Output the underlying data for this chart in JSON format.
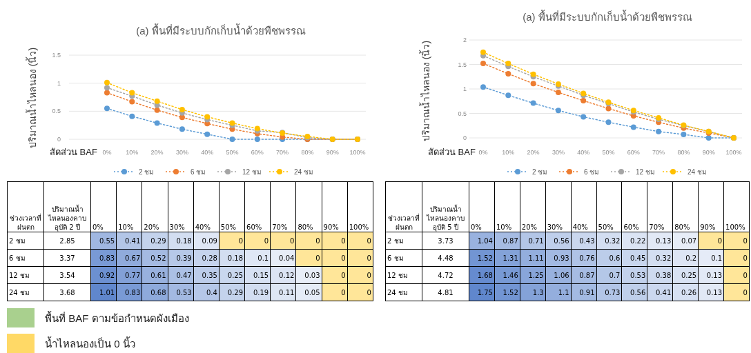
{
  "chart_data": [
    {
      "type": "line",
      "title": "(a) พื้นที่มีระบบกักเก็บน้ำด้วยพืชพรรณ",
      "xlabel": "สัดส่วน BAF",
      "ylabel": "ปริมาณน้ำไหลนอง (นิ้ว)",
      "categories": [
        "0%",
        "10%",
        "20%",
        "30%",
        "40%",
        "50%",
        "60%",
        "70%",
        "80%",
        "90%",
        "100%"
      ],
      "ylim": [
        0,
        1.5
      ],
      "yticks": [
        0,
        0.5,
        1,
        1.5
      ],
      "grid": "y",
      "legend": "bottom",
      "marker": "circle",
      "line_style": "dotted",
      "data_labels": true,
      "series": [
        {
          "name": "2 ชม",
          "color": "#5b9bd5",
          "values": [
            0.55,
            0.41,
            0.29,
            0.18,
            0.09,
            0,
            0,
            0,
            0,
            0,
            0
          ]
        },
        {
          "name": "6 ชม",
          "color": "#ed7d31",
          "values": [
            0.83,
            0.67,
            0.52,
            0.39,
            0.28,
            0.18,
            0.1,
            0.04,
            0,
            0,
            0
          ]
        },
        {
          "name": "12 ชม",
          "color": "#a5a5a5",
          "values": [
            0.92,
            0.77,
            0.61,
            0.47,
            0.35,
            0.25,
            0.15,
            0.12,
            0.03,
            0,
            0
          ]
        },
        {
          "name": "24 ชม",
          "color": "#ffc000",
          "values": [
            1.01,
            0.83,
            0.68,
            0.53,
            0.4,
            0.29,
            0.19,
            0.11,
            0.05,
            0,
            0
          ]
        }
      ],
      "annotations": [
        "ช่วงเวลาที่ฝนตก",
        "ปริมาณน้ำไหลนองคาบอุบัติ 2 ปี",
        "2.85",
        "3.37",
        "3.54",
        "3.68",
        "น้ำไหลนองเป็น 0 นิ้ว",
        "พื้นที่ BAF ตามข้อกำหนดผังเมือง"
      ]
    },
    {
      "type": "line",
      "title": "(a) พื้นที่มีระบบกักเก็บน้ำด้วยพืชพรรณ",
      "xlabel": "สัดส่วน BAF",
      "ylabel": "ปริมาณน้ำไหลนอง (นิ้ว)",
      "categories": [
        "0%",
        "10%",
        "20%",
        "30%",
        "40%",
        "50%",
        "60%",
        "70%",
        "80%",
        "90%",
        "100%"
      ],
      "ylim": [
        0,
        2
      ],
      "yticks": [
        0,
        0.5,
        1,
        1.5,
        2
      ],
      "grid": "y",
      "legend": "bottom",
      "marker": "circle",
      "line_style": "dotted",
      "data_labels": true,
      "series": [
        {
          "name": "2 ชม",
          "color": "#5b9bd5",
          "values": [
            1.04,
            0.87,
            0.71,
            0.56,
            0.43,
            0.32,
            0.22,
            0.13,
            0.07,
            0,
            0
          ]
        },
        {
          "name": "6 ชม",
          "color": "#ed7d31",
          "values": [
            1.52,
            1.31,
            1.11,
            0.93,
            0.76,
            0.6,
            0.45,
            0.32,
            0.2,
            0.1,
            0
          ]
        },
        {
          "name": "12 ชม",
          "color": "#a5a5a5",
          "values": [
            1.68,
            1.46,
            1.25,
            1.06,
            0.87,
            0.7,
            0.53,
            0.38,
            0.25,
            0.13,
            0
          ]
        },
        {
          "name": "24 ชม",
          "color": "#ffc000",
          "values": [
            1.75,
            1.52,
            1.3,
            1.1,
            0.91,
            0.73,
            0.56,
            0.41,
            0.26,
            0.13,
            0
          ]
        }
      ],
      "annotations": [
        "ช่วงเวลาที่ฝนตก",
        "ปริมาณน้ำไหลนองคาบอุบัติ 5 ปี",
        "3.73",
        "4.48",
        "4.72",
        "4.81"
      ]
    }
  ]
}
